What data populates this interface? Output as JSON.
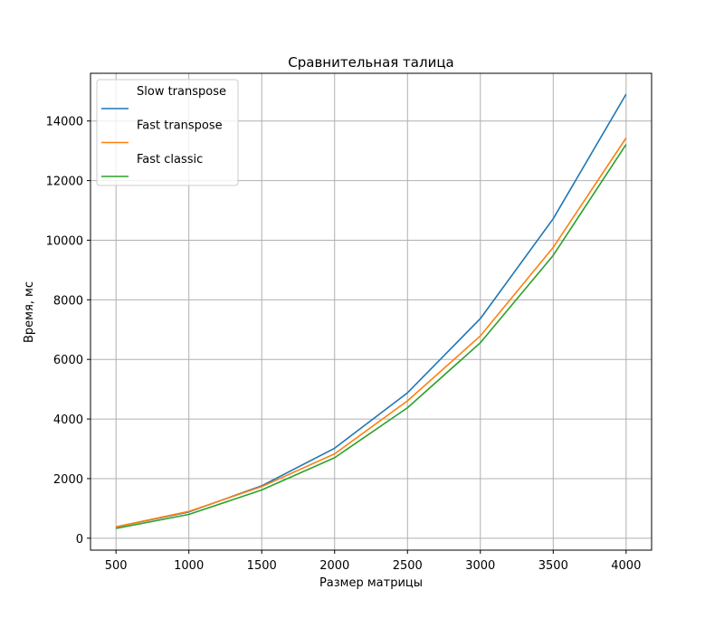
{
  "chart_data": {
    "type": "line",
    "title": "Сравнительная талица",
    "xlabel": "Размер матрицы",
    "ylabel": "Время, мс",
    "x": [
      500,
      1000,
      1500,
      2000,
      2500,
      3000,
      3500,
      4000
    ],
    "xticks": [
      500,
      1000,
      1500,
      2000,
      2500,
      3000,
      3500,
      4000
    ],
    "yticks": [
      0,
      2000,
      4000,
      6000,
      8000,
      10000,
      12000,
      14000
    ],
    "xlim": [
      325,
      4175
    ],
    "ylim": [
      -400,
      15600
    ],
    "grid": true,
    "legend_position": "top-left",
    "series": [
      {
        "name": "Slow transpose",
        "color": "#1f77b4",
        "values": [
          380,
          880,
          1760,
          3020,
          4880,
          7370,
          10720,
          14900
        ]
      },
      {
        "name": "Fast transpose",
        "color": "#ff7f0e",
        "values": [
          380,
          900,
          1730,
          2830,
          4610,
          6790,
          9760,
          13430
        ]
      },
      {
        "name": "Fast classic",
        "color": "#2ca02c",
        "values": [
          330,
          800,
          1620,
          2700,
          4380,
          6560,
          9490,
          13210
        ]
      }
    ]
  }
}
